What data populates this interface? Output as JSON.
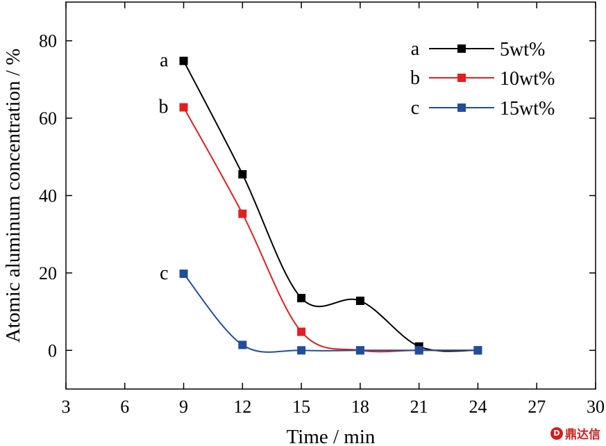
{
  "chart_data": {
    "type": "scatter",
    "xlabel": "Time / min",
    "ylabel": "Atomic aluminum concentration / %",
    "xlim": [
      3,
      30
    ],
    "ylim": [
      -10,
      90
    ],
    "x_ticks": [
      3,
      6,
      9,
      12,
      15,
      18,
      21,
      24,
      27,
      30
    ],
    "y_ticks": [
      0,
      20,
      40,
      60,
      80
    ],
    "grid": false,
    "legend_position": "top-right",
    "series": [
      {
        "key": "a",
        "name": "5wt%",
        "color": "#000000",
        "x": [
          9,
          12,
          15,
          18,
          21,
          24
        ],
        "y": [
          74.8,
          45.5,
          13.5,
          12.8,
          1.0,
          0
        ]
      },
      {
        "key": "b",
        "name": "10wt%",
        "color": "#e02020",
        "x": [
          9,
          12,
          15,
          18,
          21,
          24
        ],
        "y": [
          62.8,
          35.3,
          4.8,
          0,
          0,
          0
        ]
      },
      {
        "key": "c",
        "name": "15wt%",
        "color": "#1f4e9c",
        "x": [
          9,
          12,
          15,
          18,
          21,
          24
        ],
        "y": [
          19.8,
          1.4,
          0,
          0,
          0,
          0
        ]
      }
    ]
  },
  "watermark": {
    "text": "鼎达信",
    "icon": "D"
  }
}
